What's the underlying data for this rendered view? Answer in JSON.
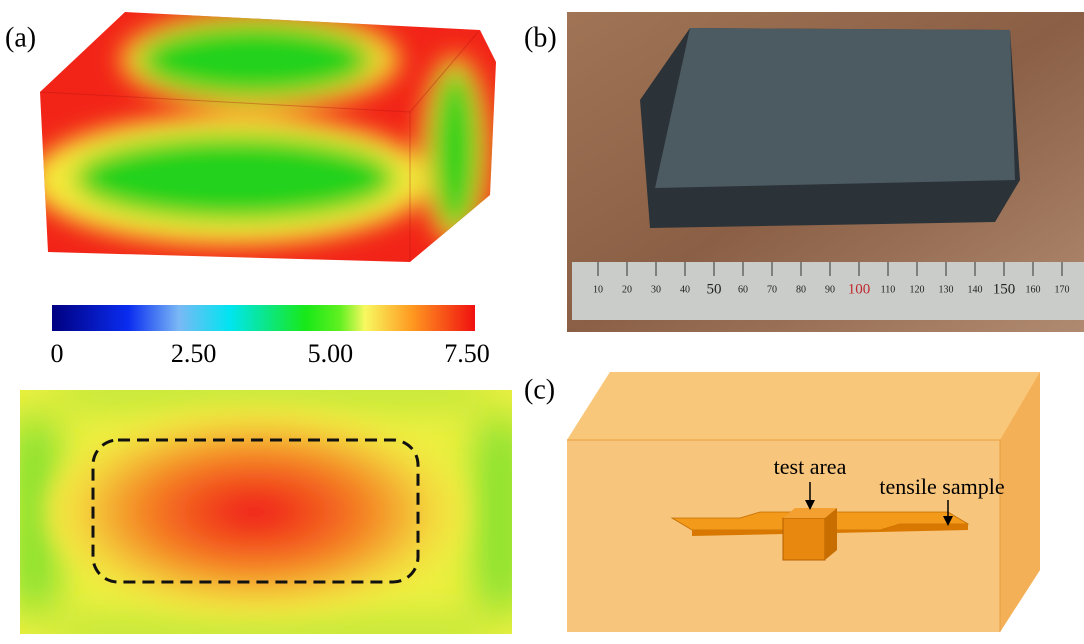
{
  "panels": {
    "a": {
      "label": "(a)",
      "colorbar": {
        "lim": [
          0,
          7.5
        ],
        "ticks": [
          {
            "value": 0,
            "label": "0"
          },
          {
            "value": 2.5,
            "label": "2.50"
          },
          {
            "value": 5,
            "label": "5.00"
          },
          {
            "value": 7.5,
            "label": "7.50"
          }
        ]
      }
    },
    "b": {
      "label": "(b)",
      "ruler": {
        "ticks": [
          10,
          20,
          30,
          40,
          50,
          60,
          70,
          80,
          90,
          {
            "value": 100,
            "color": "#c0282d"
          },
          110,
          120,
          130,
          140,
          150,
          160,
          170
        ]
      }
    },
    "c": {
      "label": "(c)",
      "annotations": [
        "test area",
        "tensile sample"
      ]
    }
  }
}
